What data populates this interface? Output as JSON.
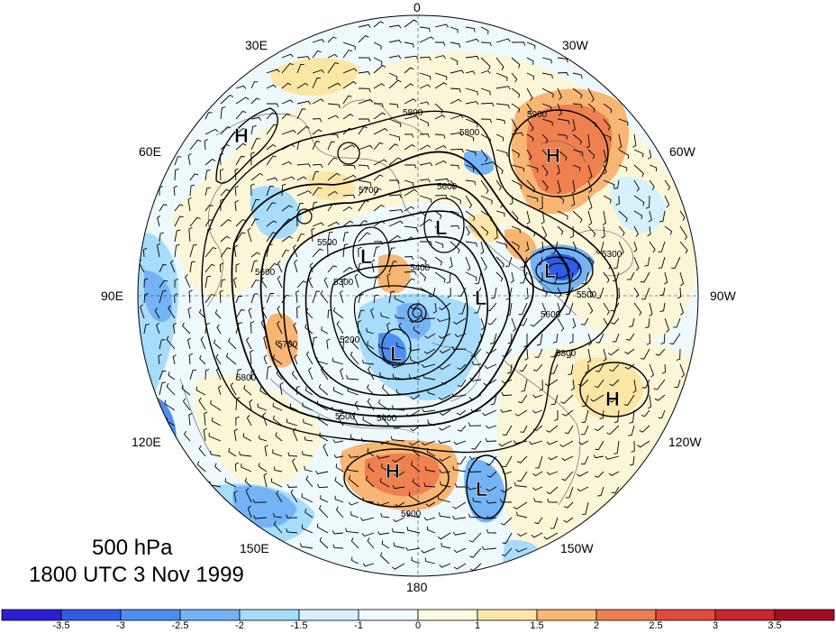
{
  "map": {
    "projection": "north polar stereographic",
    "longitude_labels": [
      "0",
      "30W",
      "60W",
      "90W",
      "120W",
      "150W",
      "180",
      "150E",
      "120E",
      "90E",
      "60E",
      "30E"
    ],
    "contour_labels": [
      "5900",
      "5800",
      "5800",
      "5700",
      "5600",
      "5500",
      "5400",
      "5300",
      "5200",
      "5400",
      "5500",
      "5600",
      "5700",
      "5800",
      "5900",
      "5800",
      "5600",
      "5500",
      "5300"
    ],
    "highs": [
      "H",
      "H",
      "H",
      "H"
    ],
    "lows": [
      "L",
      "L",
      "L",
      "L",
      "L",
      "L"
    ]
  },
  "caption": {
    "level": "500 hPa",
    "time": "1800 UTC 3 Nov 1999"
  },
  "colorbar": {
    "tick_labels": [
      "-3.5",
      "-3",
      "-2.5",
      "-2",
      "-1.5",
      "-1",
      "0",
      "1",
      "1.5",
      "2",
      "2.5",
      "3",
      "3.5"
    ],
    "colors": [
      "#2a1fd4",
      "#2f5de8",
      "#4d8ff0",
      "#74b3f6",
      "#a7dcfb",
      "#d6f1fd",
      "#eefafe",
      "#fdfbe0",
      "#fbe6a6",
      "#f7b673",
      "#ef8050",
      "#e24b3c",
      "#c82631",
      "#a30f22"
    ]
  },
  "colors": {
    "contour": "#000000",
    "grid": "#333333"
  }
}
